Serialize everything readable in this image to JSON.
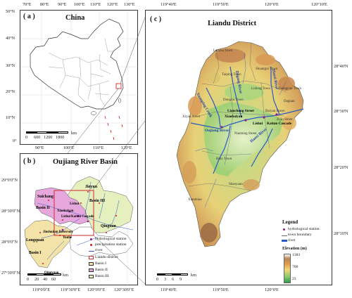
{
  "panel_a": {
    "label": "( a )",
    "title": "China",
    "top_ticks": [
      "70°E",
      "80°E",
      "90°E",
      "100°E",
      "110°E",
      "120°E",
      "130°E"
    ],
    "bottom_ticks": [
      "90°E",
      "100°E",
      "110°E",
      "120°E"
    ],
    "left_ticks": [
      "50°N",
      "40°N",
      "30°N",
      "20°N",
      "10°N",
      "0°"
    ],
    "scale": {
      "labels": [
        "0",
        "600",
        "1200",
        "1800"
      ],
      "unit": "km"
    }
  },
  "panel_b": {
    "label": "( b )",
    "title": "Oujiang River Basin",
    "bottom_ticks": [
      "119°0'0\"E",
      "119°30'0\"E",
      "120°0'0\"E",
      "120°30'0\"E"
    ],
    "left_ticks": [
      "29°0'0\"N",
      "28°30'0\"N",
      "28°0'0\"N",
      "27°30'0\"N"
    ],
    "scale": {
      "labels": [
        "0",
        "20",
        "40",
        "60"
      ],
      "unit": "km"
    },
    "places": {
      "suichang": "Suichang",
      "jinyun": "Jinyun",
      "basin_ii": "Basin II",
      "basin_iii": "Basin III",
      "basin_i": "Basin I",
      "lishui": "Lishui",
      "xiaobaiyan": "Xiaobaiyan",
      "lishui2": "Lishui",
      "kaitan": "Kaitan Cascade",
      "jinshuitan": "Jinshuitan Reservoir",
      "yunhe": "Yunhe",
      "longquan": "Longquan",
      "qingtian": "Qingtian",
      "qingyuan": "Qingyuan"
    },
    "legend": [
      {
        "key": "hydro",
        "label": "hydrological station"
      },
      {
        "key": "precip",
        "label": "precipitation station"
      },
      {
        "key": "river",
        "label": "river"
      },
      {
        "key": "liandu",
        "label": "Liandu district"
      },
      {
        "key": "b1",
        "label": "Basin I"
      },
      {
        "key": "b2",
        "label": "Basin II"
      },
      {
        "key": "b3",
        "label": "Basin III"
      }
    ]
  },
  "panel_c": {
    "label": "( c )",
    "title": "Liandu District",
    "top_ticks": [
      "119°40'E",
      "119°50'E",
      "120°0'E",
      "120°10'E"
    ],
    "bottom_ticks": [
      "119°40'E",
      "119°50'E",
      "120°0'E"
    ],
    "right_ticks": [
      "28°40'N",
      "28°30'N",
      "28°20'N",
      "28°10'N"
    ],
    "scale": {
      "labels": [
        "0",
        "3",
        "6",
        "9"
      ],
      "unit": "km"
    },
    "towns": {
      "taiping": "Taiping Town",
      "laozhu": "Laozhu Town",
      "lidong": "Lidong Town",
      "shuangx": "Shuangxi Town",
      "huangcun": "Huangcun Town",
      "donghu": "Donghu Town",
      "liancheng": "Liancheng Street",
      "xiyan": "Xiyan Street",
      "baiyan": "Baiyan Street",
      "xiaobaiyan": "Xiaobaiyan",
      "lishui": "Lishui",
      "kaitan": "Kaitan Cascade",
      "zijin": "Zijin Street",
      "nanming": "Nanming Street",
      "bihu": "Bihu Town",
      "shanyuan": "Shanyuan",
      "daguan": "Daguan",
      "xianmiao": "Xianmiao"
    },
    "rivers": {
      "r1": "Xuanping Creek",
      "r2": "Haoxi River",
      "r3": "Dagang River",
      "r4": "Oujiang River",
      "r5": "Haoxi River"
    },
    "legend_title": "Legend",
    "legend": [
      {
        "key": "hydro",
        "label": "hydrological station"
      },
      {
        "key": "town",
        "label": "town boundary"
      },
      {
        "key": "river",
        "label": "river"
      }
    ],
    "elevation": {
      "title": "Elevation (m)",
      "max": "1383",
      "mid": "700",
      "min": "23"
    }
  },
  "colors": {
    "basin1": "#f4e3a8",
    "basin2": "#e6a8dc",
    "basin3": "#e6f0bf",
    "liandu": "#d22b2b",
    "river": "#2b59c3",
    "hydro": "#8b1a8b",
    "precip": "#d11c1c"
  }
}
